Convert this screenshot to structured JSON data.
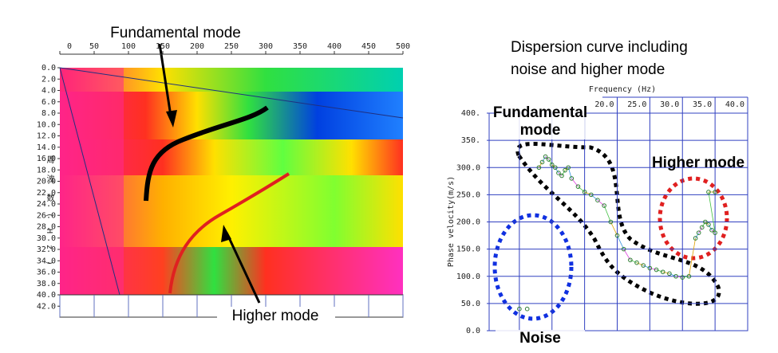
{
  "chart_data": [
    {
      "type": "heatmap",
      "xlim": [
        0,
        500
      ],
      "xticks": [
        0,
        50,
        100,
        150,
        200,
        250,
        300,
        350,
        400,
        450,
        500
      ],
      "ylim": [
        0,
        42
      ],
      "yticks": [
        {
          "value": 0,
          "label": "0.0"
        },
        {
          "value": 2,
          "label": "2.0"
        },
        {
          "value": 4,
          "label": "4.0"
        },
        {
          "value": 6,
          "label": "6.0"
        },
        {
          "value": 8,
          "label": "8.0"
        },
        {
          "value": 10,
          "label": "10.0"
        },
        {
          "value": 12,
          "label": "12.0"
        },
        {
          "value": 14,
          "label": "14.0"
        },
        {
          "value": 16,
          "label": "16.0"
        },
        {
          "value": 18,
          "label": "18.0"
        },
        {
          "value": 20,
          "label": "20.0"
        },
        {
          "value": 22,
          "label": "22.0"
        },
        {
          "value": 24,
          "label": "24.0"
        },
        {
          "value": 26,
          "label": "26.0"
        },
        {
          "value": 28,
          "label": "28.0"
        },
        {
          "value": 30,
          "label": "30.0"
        },
        {
          "value": 32,
          "label": "32.0"
        },
        {
          "value": 34,
          "label": "34.0"
        },
        {
          "value": 36,
          "label": "36.0"
        },
        {
          "value": 38,
          "label": "38.0"
        },
        {
          "value": 40,
          "label": "40.0"
        },
        {
          "value": 42,
          "label": "42.0"
        }
      ],
      "ylabel": "周波数(Hz)",
      "annotations": [
        "Fundamental mode",
        "Higher mode"
      ]
    },
    {
      "type": "scatter",
      "title": [
        "Dispersion curve including",
        "noise and higher mode"
      ],
      "xlabel": "Frequency (Hz)",
      "ylabel": "Phase velocity(m/s)",
      "xlim": [
        0,
        40
      ],
      "xticks": [
        {
          "value": 20,
          "label": "20.0"
        },
        {
          "value": 25,
          "label": "25.0"
        },
        {
          "value": 30,
          "label": "30.0"
        },
        {
          "value": 35,
          "label": "35.0"
        },
        {
          "value": 40,
          "label": "40.0"
        }
      ],
      "xgrid": [
        5,
        10,
        15
      ],
      "ylim": [
        0,
        400
      ],
      "yticks": [
        {
          "value": 0,
          "label": "0.0"
        },
        {
          "value": 50,
          "label": "50.0"
        },
        {
          "value": 100,
          "label": "100.0"
        },
        {
          "value": 150,
          "label": "150.0"
        },
        {
          "value": 200,
          "label": "200.0"
        },
        {
          "value": 250,
          "label": "250.0"
        },
        {
          "value": 300,
          "label": "300.0"
        },
        {
          "value": 350,
          "label": "350."
        },
        {
          "value": 400,
          "label": "400."
        }
      ],
      "x": [
        5,
        6.2,
        8,
        8.5,
        9,
        9.5,
        10,
        10.5,
        11,
        11.5,
        12,
        12.5,
        13,
        14,
        15,
        16,
        17,
        18,
        19,
        20,
        21,
        22,
        23,
        24,
        25,
        26,
        27,
        28,
        29,
        30,
        31,
        32,
        32.5,
        33,
        33.5,
        34,
        34.5,
        35,
        34,
        35
      ],
      "values": [
        40,
        40,
        300,
        310,
        320,
        315,
        305,
        300,
        290,
        285,
        295,
        300,
        280,
        265,
        255,
        250,
        240,
        230,
        200,
        175,
        150,
        130,
        125,
        120,
        115,
        112,
        108,
        105,
        100,
        98,
        100,
        170,
        180,
        190,
        200,
        195,
        185,
        180,
        255,
        255
      ],
      "color": "#2e7d32",
      "annotations": [
        "Fundamental",
        "mode",
        "Higher mode",
        "Noise"
      ]
    }
  ]
}
